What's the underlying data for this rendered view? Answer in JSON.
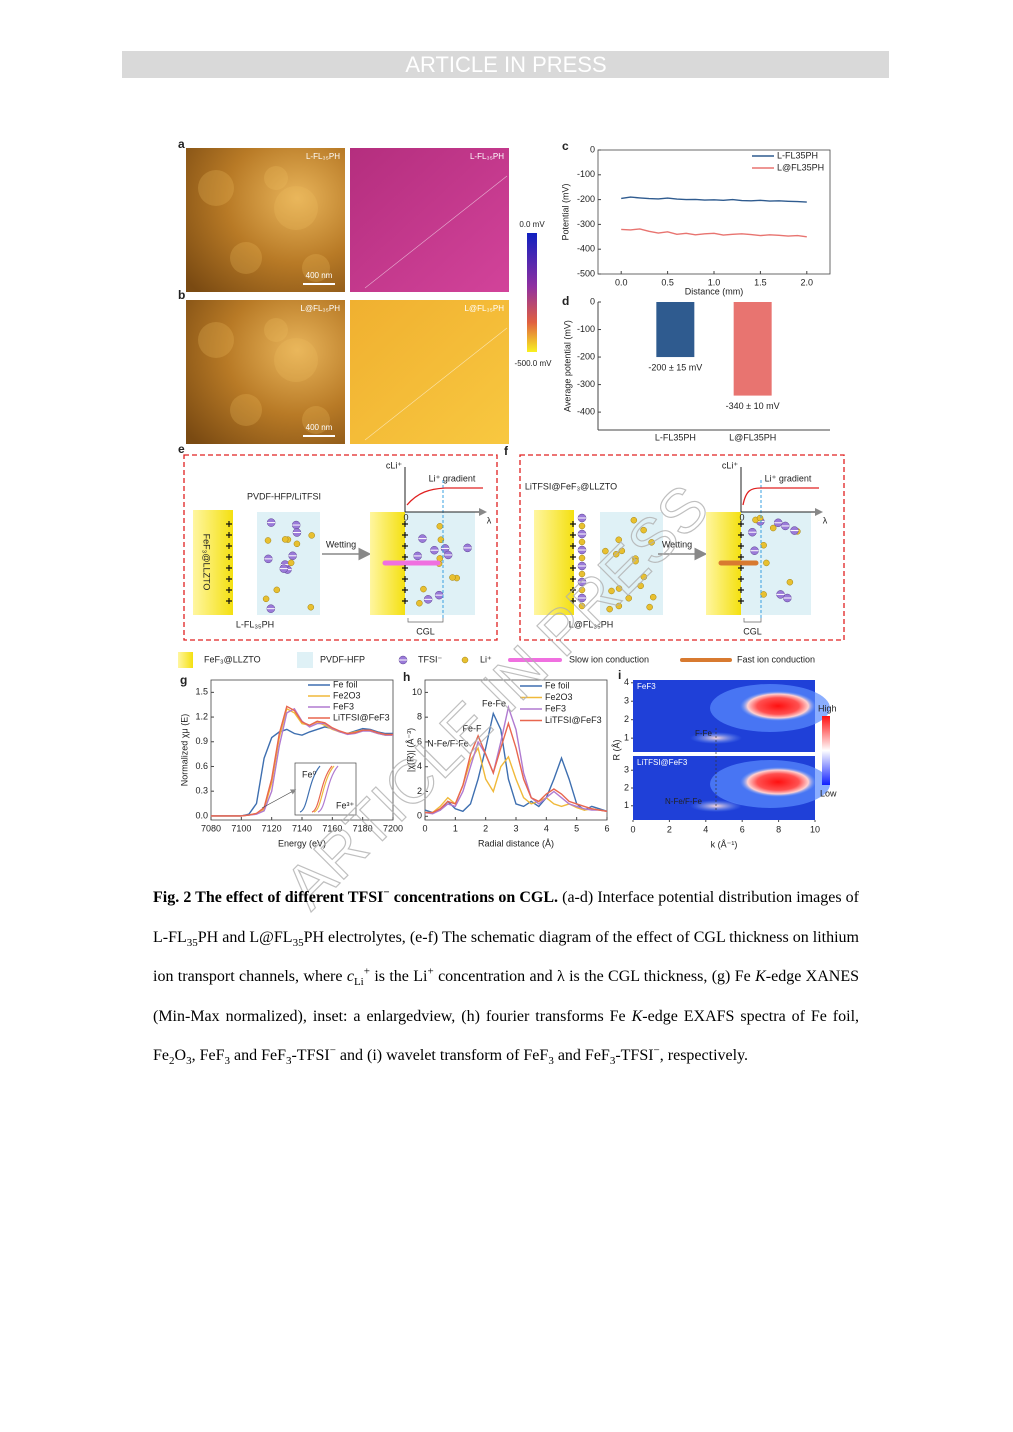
{
  "header": {
    "banner": "ARTICLE IN PRESS"
  },
  "watermark": "ARTICLE IN PRESS",
  "figure": {
    "panel_labels": [
      "a",
      "b",
      "c",
      "d",
      "e",
      "f",
      "g",
      "h",
      "i"
    ],
    "ab": {
      "images": [
        {
          "label": "L-FL₃₅PH",
          "scale_bar": "400 nm"
        },
        {
          "label": "L-FL₃₅PH"
        },
        {
          "label": "L@FL₃₅PH",
          "scale_bar": "400 nm"
        },
        {
          "label": "L@FL₃₅PH"
        }
      ],
      "colorbar": [
        "0.0 mV",
        "-500.0 mV"
      ]
    },
    "c": {
      "type": "line",
      "ylabel": "Potential (mV)",
      "xlabel": "Distance (mm)",
      "x": [
        0,
        0.1,
        0.2,
        0.3,
        0.4,
        0.5,
        0.6,
        0.7,
        0.8,
        0.9,
        1.0,
        1.1,
        1.2,
        1.3,
        1.4,
        1.5,
        1.6,
        1.7,
        1.8,
        1.9,
        2.0
      ],
      "xlim": [
        -0.25,
        2.25
      ],
      "ylim": [
        -500,
        0
      ],
      "xticks": [
        {
          "value": 0,
          "label": "0.0"
        },
        {
          "value": 0.5,
          "label": "0.5"
        },
        {
          "value": 1,
          "label": "1.0"
        },
        {
          "value": 1.5,
          "label": "1.5"
        },
        {
          "value": 2,
          "label": "2.0"
        }
      ],
      "yticks": [
        0,
        -100,
        -200,
        -300,
        -400,
        -500
      ],
      "series": [
        {
          "name": "L-FL35PH",
          "color": "#2f5b8f",
          "values": [
            -195,
            -190,
            -193,
            -196,
            -197,
            -194,
            -198,
            -200,
            -199,
            -202,
            -201,
            -203,
            -200,
            -204,
            -205,
            -203,
            -206,
            -205,
            -207,
            -208,
            -210
          ]
        },
        {
          "name": "L@FL35PH",
          "color": "#e87470",
          "values": [
            -320,
            -322,
            -318,
            -328,
            -335,
            -330,
            -340,
            -336,
            -342,
            -338,
            -336,
            -343,
            -340,
            -338,
            -341,
            -345,
            -342,
            -344,
            -347,
            -345,
            -350
          ]
        }
      ]
    },
    "d": {
      "type": "bar",
      "ylabel": "Average potential (mV)",
      "categories": [
        "L-FL35PH",
        "L@FL35PH"
      ],
      "values": [
        -200,
        -340
      ],
      "value_labels": [
        "-200 ± 15 mV",
        "-340 ± 10 mV"
      ],
      "colors": [
        "#2f5b8f",
        "#e87470"
      ],
      "ylim": [
        -465,
        0
      ],
      "yticks": [
        0,
        -100,
        -200,
        -300,
        -400
      ]
    },
    "e": {
      "top": "PVDF-HFP/LiTFSI",
      "side": "FeF₃@LLZTO",
      "arrow": "Wetting",
      "bottom": "L-FL₃₅PH",
      "cgl": "CGL",
      "gradient": "Li⁺ gradient",
      "axis_y": "cLi⁺",
      "origin": "0",
      "axis_x": "λ"
    },
    "f": {
      "top": "LiTFSI@FeF₃@LLZTO",
      "arrow": "Wetting",
      "bottom": "L@FL₃₅PH",
      "cgl": "CGL",
      "gradient": "Li⁺ gradient",
      "axis_y": "cLi⁺",
      "origin": "0",
      "axis_x": "λ"
    },
    "legend": [
      "FeF₃@LLZTO",
      "PVDF-HFP",
      "TFSI⁻",
      "Li⁺",
      "Slow ion conduction",
      "Fast ion conduction"
    ],
    "g": {
      "type": "line",
      "ylabel": "Normalized χμ (E)",
      "xlabel": "Energy (eV)",
      "x": [
        7080,
        7085,
        7090,
        7095,
        7100,
        7105,
        7110,
        7115,
        7120,
        7125,
        7130,
        7135,
        7140,
        7145,
        7150,
        7155,
        7160,
        7165,
        7170,
        7175,
        7180,
        7185,
        7190,
        7195,
        7200
      ],
      "xlim": [
        7080,
        7200
      ],
      "ylim": [
        -0.05,
        1.65
      ],
      "xticks": [
        7080,
        7100,
        7120,
        7140,
        7160,
        7180,
        7200
      ],
      "yticks": [
        {
          "value": 0,
          "label": "0.0"
        },
        {
          "value": 0.3,
          "label": "0.3"
        },
        {
          "value": 0.6,
          "label": "0.6"
        },
        {
          "value": 0.9,
          "label": "0.9"
        },
        {
          "value": 1.2,
          "label": "1.2"
        },
        {
          "value": 1.5,
          "label": "1.5"
        }
      ],
      "series": [
        {
          "name": "Fe foil",
          "color": "#3e6fb0",
          "values": [
            0,
            0,
            0,
            0,
            0,
            0.02,
            0.15,
            0.7,
            0.95,
            1.02,
            1.05,
            1.0,
            0.98,
            1.02,
            1.05,
            1.08,
            1.06,
            1.02,
            1.0,
            1.03,
            1.06,
            1.05,
            1.02,
            1.0,
            1.0
          ]
        },
        {
          "name": "Fe2O3",
          "color": "#f0b93a",
          "values": [
            0,
            0,
            0,
            0,
            0,
            0.01,
            0.03,
            0.08,
            0.4,
            0.95,
            1.3,
            1.25,
            1.12,
            1.1,
            1.14,
            1.1,
            1.05,
            1.02,
            1.0,
            1.02,
            1.04,
            1.03,
            1.0,
            0.98,
            0.98
          ]
        },
        {
          "name": "FeF3",
          "color": "#b07ad0",
          "values": [
            0,
            0,
            0,
            0,
            0,
            0.01,
            0.02,
            0.06,
            0.3,
            0.85,
            1.25,
            1.3,
            1.15,
            1.08,
            1.12,
            1.12,
            1.06,
            1.02,
            0.99,
            1.0,
            1.03,
            1.03,
            1.0,
            0.98,
            0.98
          ]
        },
        {
          "name": "LiTFSI@FeF3",
          "color": "#e8664f",
          "values": [
            0,
            0,
            0,
            0,
            0,
            0.01,
            0.03,
            0.1,
            0.45,
            1.0,
            1.33,
            1.28,
            1.14,
            1.1,
            1.15,
            1.13,
            1.07,
            1.03,
            1.0,
            1.01,
            1.04,
            1.04,
            1.01,
            0.99,
            0.99
          ]
        }
      ],
      "inset": [
        "Fe⁰",
        "Fe³⁺"
      ]
    },
    "h": {
      "type": "line",
      "ylabel": "|χ(R)| (Å⁻³)",
      "xlabel": "Radial distance (Å)",
      "x": [
        0,
        0.25,
        0.5,
        0.75,
        1,
        1.25,
        1.5,
        1.75,
        2,
        2.25,
        2.5,
        2.75,
        3,
        3.25,
        3.5,
        3.75,
        4,
        4.25,
        4.5,
        4.75,
        5,
        5.25,
        5.5,
        5.75,
        6
      ],
      "xlim": [
        0,
        6
      ],
      "ylim": [
        -0.3,
        11
      ],
      "xticks": [
        0,
        1,
        2,
        3,
        4,
        5,
        6
      ],
      "yticks": [
        0,
        2,
        4,
        6,
        8,
        10
      ],
      "series": [
        {
          "name": "Fe foil",
          "color": "#3e6fb0",
          "values": [
            0.5,
            0.3,
            0.5,
            1.2,
            0.6,
            0.4,
            1.0,
            3.0,
            5.5,
            8.3,
            7.0,
            3.0,
            1.0,
            0.8,
            1.2,
            0.8,
            1.5,
            3.0,
            4.7,
            3.0,
            1.0,
            0.5,
            0.8,
            0.6,
            0.4
          ]
        },
        {
          "name": "Fe2O3",
          "color": "#f0b93a",
          "values": [
            0.3,
            0.3,
            0.8,
            1.5,
            1.0,
            2.5,
            4.5,
            5.5,
            3.0,
            2.0,
            4.0,
            4.8,
            3.0,
            1.5,
            1.0,
            1.2,
            1.5,
            1.0,
            0.8,
            1.0,
            0.7,
            0.5,
            0.6,
            0.5,
            0.4
          ]
        },
        {
          "name": "FeF3",
          "color": "#b07ad0",
          "values": [
            0.3,
            0.2,
            0.5,
            1.0,
            0.8,
            2.0,
            4.0,
            6.0,
            5.0,
            3.5,
            6.0,
            8.8,
            7.0,
            3.5,
            1.5,
            1.0,
            1.5,
            2.0,
            1.5,
            1.0,
            0.8,
            0.6,
            0.5,
            0.5,
            0.4
          ]
        },
        {
          "name": "LiTFSI@FeF3",
          "color": "#e8664f",
          "values": [
            0.3,
            0.3,
            0.6,
            1.2,
            1.0,
            2.5,
            5.0,
            6.5,
            5.0,
            3.5,
            5.5,
            7.5,
            5.5,
            3.0,
            1.5,
            1.2,
            1.8,
            2.2,
            1.8,
            1.2,
            1.0,
            0.8,
            0.6,
            0.5,
            0.4
          ]
        }
      ],
      "annotations": [
        "Fe-Fe",
        "Fe-F",
        "N-Fe/F-Fe"
      ]
    },
    "i": {
      "titles": [
        "FeF3",
        "LiTFSI@FeF3"
      ],
      "annotations": [
        "F-Fe",
        "N-Fe/F-Fe"
      ],
      "ylabel": "R (Å)",
      "xlabel": "k (Å⁻¹)",
      "xlim": [
        0,
        10
      ],
      "xticks": [
        0,
        2,
        4,
        6,
        8,
        10
      ],
      "ylim_top": [
        0.25,
        4.15
      ],
      "yticks_top": [
        1,
        2,
        3,
        4
      ],
      "ylim_bottom": [
        0.2,
        3.8
      ],
      "yticks_bottom": [
        1,
        2,
        3
      ],
      "colorbar": [
        "High",
        "Low"
      ]
    }
  },
  "caption": {
    "runs": [
      {
        "t": "Fig. 2 The effect of different TFSI",
        "s": "b"
      },
      {
        "t": "−",
        "s": "bsup"
      },
      {
        "t": " concentrations on CGL.",
        "s": "b"
      },
      {
        "t": " (a-d) Interface potential distribution images of L-FL"
      },
      {
        "t": "35",
        "s": "sub"
      },
      {
        "t": "PH and L@FL"
      },
      {
        "t": "35",
        "s": "sub"
      },
      {
        "t": "PH electrolytes, (e-f) The schematic diagram of the effect of CGL thickness on lithium ion transport channels, where "
      },
      {
        "t": "c",
        "s": "i"
      },
      {
        "t": "Li",
        "s": "sub"
      },
      {
        "t": "+",
        "s": "sup"
      },
      {
        "t": " is the Li"
      },
      {
        "t": "+",
        "s": "sup"
      },
      {
        "t": " concentration and λ is the CGL thickness, (g) Fe "
      },
      {
        "t": "K",
        "s": "i"
      },
      {
        "t": "-edge XANES (Min-Max normalized), inset: a enlargedview, (h) fourier transforms Fe "
      },
      {
        "t": "K",
        "s": "i"
      },
      {
        "t": "-edge EXAFS spectra of Fe foil, Fe"
      },
      {
        "t": "2",
        "s": "sub"
      },
      {
        "t": "O"
      },
      {
        "t": "3",
        "s": "sub"
      },
      {
        "t": ", FeF"
      },
      {
        "t": "3",
        "s": "sub"
      },
      {
        "t": " and FeF"
      },
      {
        "t": "3",
        "s": "sub"
      },
      {
        "t": "-TFSI"
      },
      {
        "t": "−",
        "s": "sup"
      },
      {
        "t": " and (i) wavelet transform of FeF"
      },
      {
        "t": "3",
        "s": "sub"
      },
      {
        "t": " and FeF"
      },
      {
        "t": "3",
        "s": "sub"
      },
      {
        "t": "-TFSI"
      },
      {
        "t": "−",
        "s": "sup"
      },
      {
        "t": ", respectively."
      }
    ]
  }
}
